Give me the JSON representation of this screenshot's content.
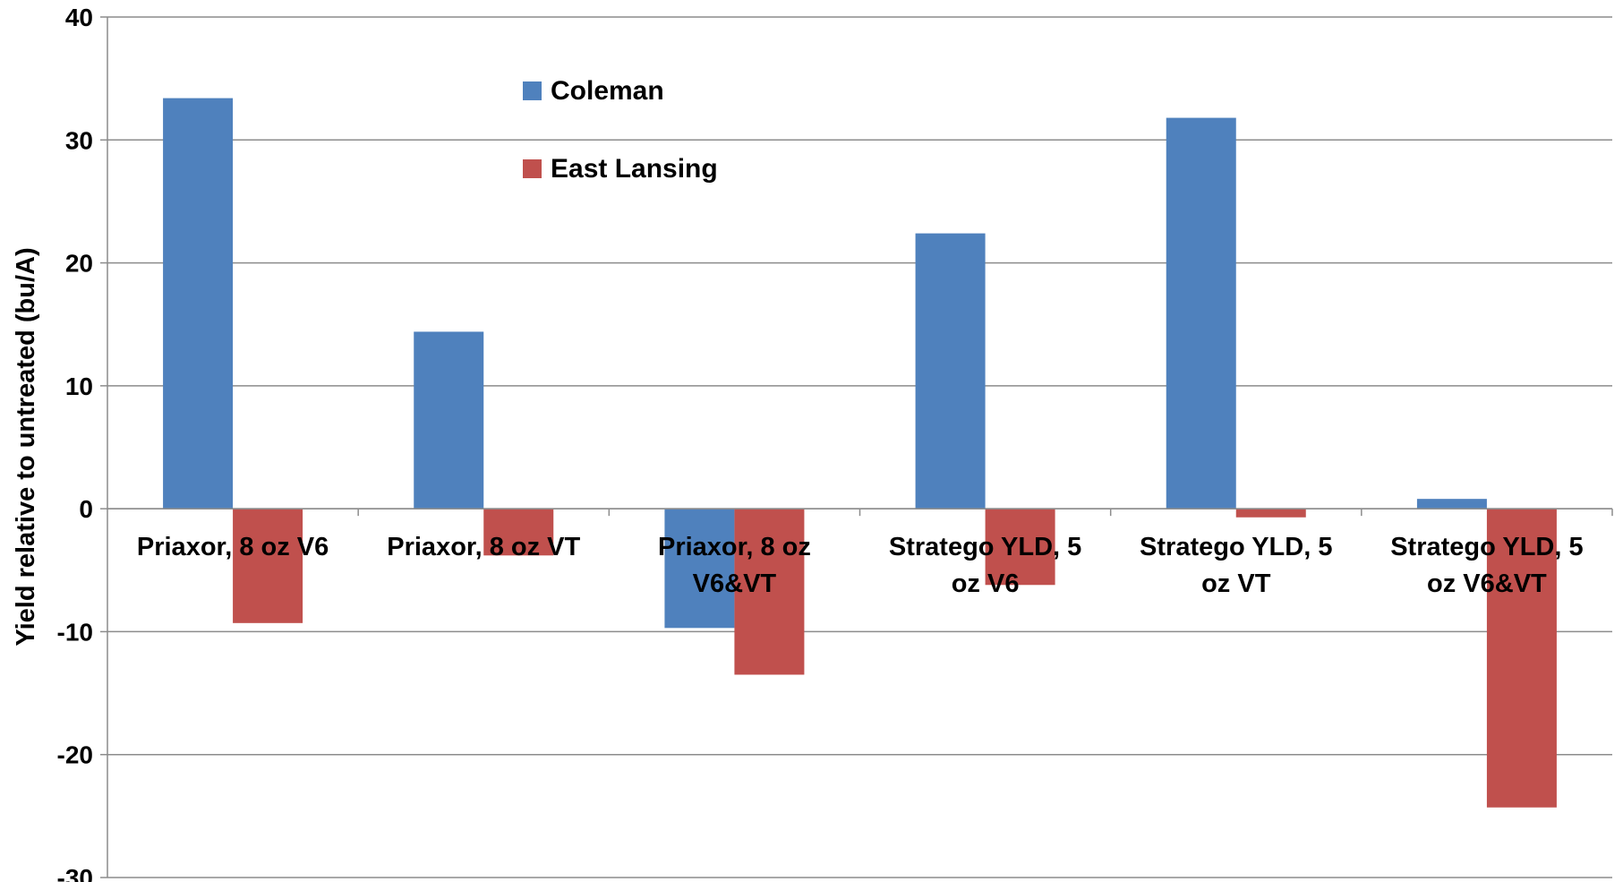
{
  "chart_data": {
    "type": "bar",
    "title": "",
    "xlabel": "",
    "ylabel": "Yield relative to untreated (bu/A)",
    "ylim": [
      -30,
      40
    ],
    "yticks": [
      40,
      30,
      20,
      10,
      0,
      -10,
      -20,
      -30
    ],
    "grid": true,
    "legend_position": "top-center",
    "categories": [
      [
        "Priaxor, 8 oz V6"
      ],
      [
        "Priaxor, 8 oz VT"
      ],
      [
        "Priaxor, 8 oz",
        "V6&VT"
      ],
      [
        "Stratego YLD, 5",
        "oz V6"
      ],
      [
        "Stratego YLD, 5",
        "oz VT"
      ],
      [
        "Stratego YLD, 5",
        "oz V6&VT"
      ]
    ],
    "series": [
      {
        "name": "Coleman",
        "color": "#4F81BD",
        "values": [
          33.4,
          14.4,
          -9.7,
          22.4,
          31.8,
          0.8
        ]
      },
      {
        "name": "East Lansing",
        "color": "#C0504D",
        "values": [
          -9.3,
          -3.8,
          -13.5,
          -6.2,
          -0.7,
          -24.3
        ]
      }
    ]
  }
}
